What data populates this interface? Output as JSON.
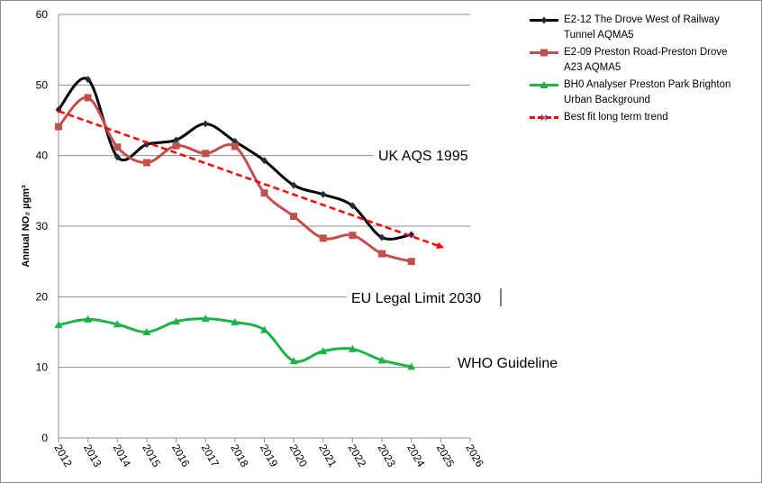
{
  "chart_data": {
    "type": "line",
    "y_label": "Annual NO₂ µgm³",
    "xlim": [
      2012,
      2026
    ],
    "xticks": [
      2012,
      2013,
      2014,
      2015,
      2016,
      2017,
      2018,
      2019,
      2020,
      2021,
      2022,
      2023,
      2024,
      2025,
      2026
    ],
    "ylim": [
      0,
      60
    ],
    "yticks": [
      0,
      10,
      20,
      30,
      40,
      50,
      60
    ],
    "grid": true,
    "legend": "right",
    "annotations": [
      "UK AQS 1995",
      "EU Legal Limit 2030",
      "WHO Guideline"
    ],
    "series": [
      {
        "name": "E2-12 The Drove West of Railway Tunnel AQMA5",
        "color": "#000000",
        "marker": "diamond",
        "x": [
          2012,
          2013,
          2014,
          2015,
          2016,
          2017,
          2018,
          2019,
          2020,
          2021,
          2022,
          2023,
          2024
        ],
        "values": [
          46.5,
          50.8,
          39.8,
          41.6,
          42.2,
          44.5,
          42.0,
          39.3,
          35.8,
          34.5,
          32.9,
          28.4,
          28.8
        ]
      },
      {
        "name": "E2-09 Preston Road-Preston Drove A23 AQMA5",
        "color": "#c0504d",
        "marker": "square",
        "x": [
          2012,
          2013,
          2014,
          2015,
          2016,
          2017,
          2018,
          2019,
          2020,
          2021,
          2022,
          2023,
          2024
        ],
        "values": [
          44.1,
          48.2,
          41.2,
          39.0,
          41.4,
          40.3,
          41.3,
          34.7,
          31.4,
          28.3,
          28.7,
          26.1,
          25.0
        ]
      },
      {
        "name": "BH0 Analyser Preston Park Brighton Urban Background",
        "color": "#1db24a",
        "marker": "triangle",
        "x": [
          2012,
          2013,
          2014,
          2015,
          2016,
          2017,
          2018,
          2019,
          2020,
          2021,
          2022,
          2023,
          2024
        ],
        "values": [
          16.0,
          16.8,
          16.1,
          15.0,
          16.5,
          16.9,
          16.4,
          15.3,
          10.9,
          12.3,
          12.6,
          11.0,
          10.1
        ]
      },
      {
        "name": "Best fit long term trend",
        "color": "#ff0000",
        "marker": "none",
        "dashed": true,
        "x": [
          2012,
          2025
        ],
        "values": [
          46.3,
          27.1
        ]
      }
    ]
  }
}
